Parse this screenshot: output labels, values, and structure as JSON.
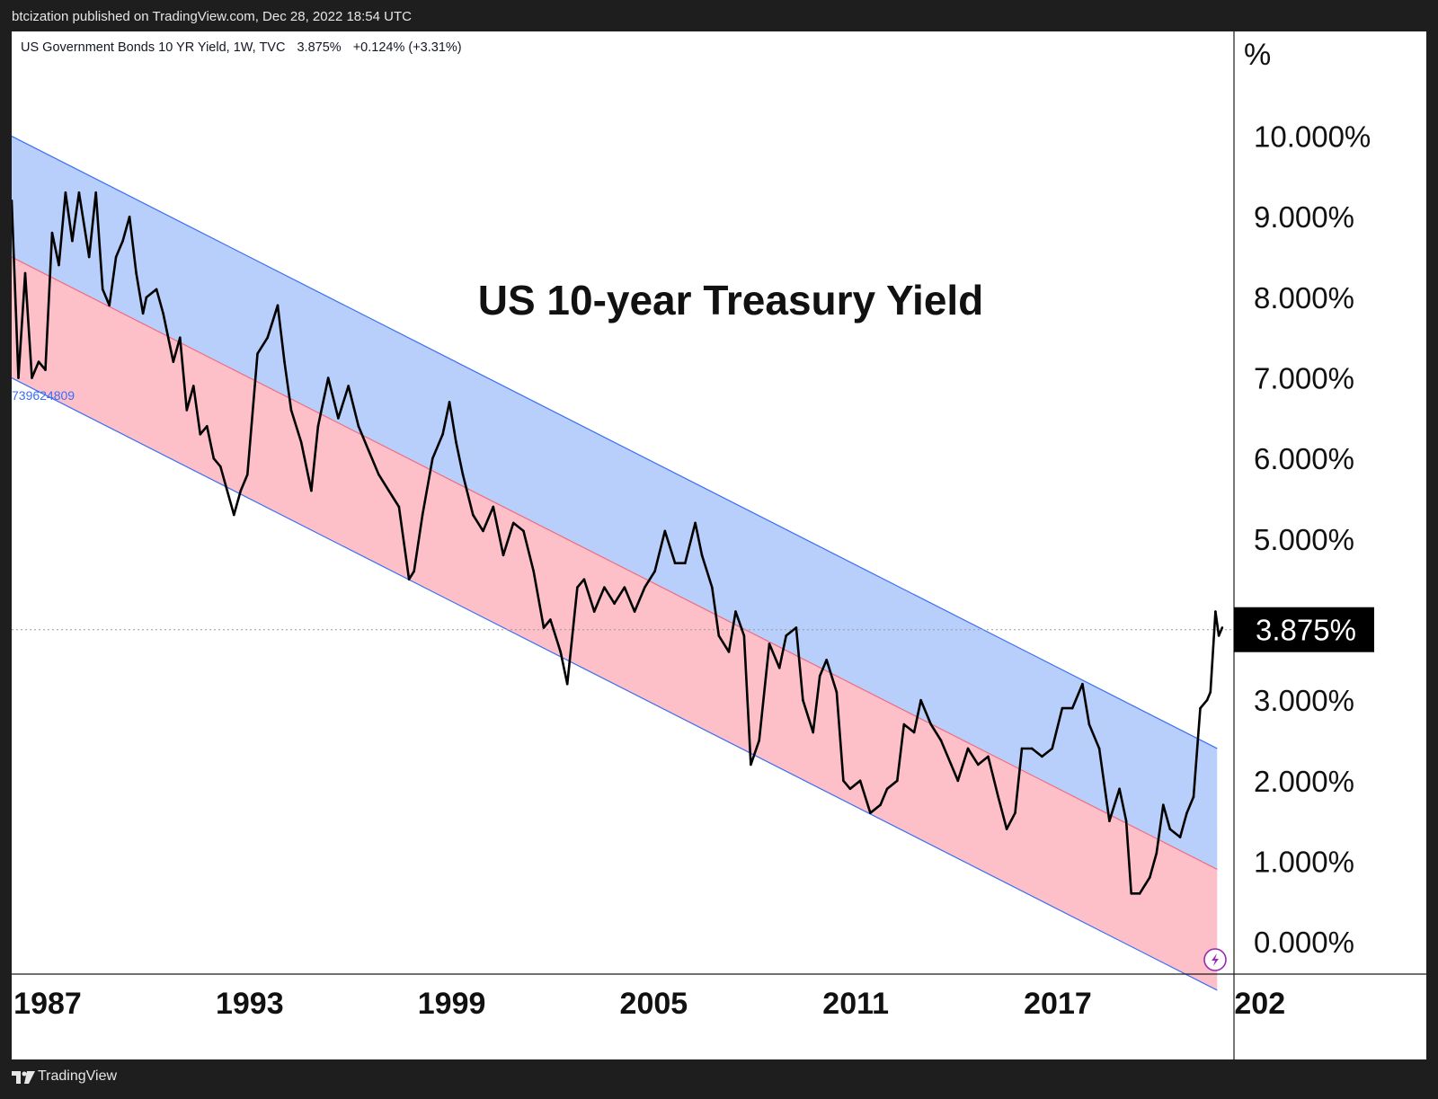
{
  "header": {
    "published": "btcization published on TradingView.com, Dec 28, 2022 18:54 UTC"
  },
  "symbol": {
    "name": "US Government Bonds 10 YR Yield, 1W, TVC",
    "price": "3.875%",
    "change": "+0.124% (+3.31%)"
  },
  "price_label": "3.875%",
  "channel_label": "739624809",
  "axis_unit": "%",
  "footer": {
    "brand": "TradingView"
  },
  "colors": {
    "upper_band": "#b8cffb",
    "lower_band": "#fdc0c8",
    "channel_line": "#3b6ef5",
    "mid_line": "#f26b7f",
    "price_line": "#000000",
    "price_badge": "#000000"
  },
  "chart_data": {
    "type": "line",
    "title": "US 10-year Treasury Yield",
    "xlabel": "",
    "ylabel": "%",
    "ylim": [
      -0.4,
      11.3
    ],
    "xlim": [
      1987.0,
      2023.3
    ],
    "y_ticks": [
      "0.000%",
      "1.000%",
      "2.000%",
      "3.000%",
      "5.000%",
      "6.000%",
      "7.000%",
      "8.000%",
      "9.000%",
      "10.000%"
    ],
    "y_tick_values": [
      0,
      1,
      2,
      3,
      5,
      6,
      7,
      8,
      9,
      10
    ],
    "x_ticks": [
      "1987",
      "1993",
      "1999",
      "2005",
      "2011",
      "2017",
      "202"
    ],
    "x_tick_values": [
      1987.0,
      1993.0,
      1999.0,
      2005.0,
      2011.0,
      2017.0,
      2023.0
    ],
    "last_value": 3.875,
    "channel": {
      "start_year": 1987.0,
      "end_year": 2022.8,
      "upper": [
        10.0,
        2.4
      ],
      "middle": [
        8.5,
        0.9
      ],
      "lower": [
        7.0,
        -0.6
      ]
    },
    "series": [
      {
        "x": [
          1987.0,
          1987.2,
          1987.4,
          1987.6,
          1987.8,
          1988.0,
          1988.2,
          1988.4,
          1988.6,
          1988.8,
          1989.0,
          1989.3,
          1989.5,
          1989.7,
          1989.9,
          1990.1,
          1990.3,
          1990.5,
          1990.7,
          1990.9,
          1991.0,
          1991.3,
          1991.5,
          1991.8,
          1992.0,
          1992.2,
          1992.4,
          1992.6,
          1992.8,
          1993.0,
          1993.2,
          1993.4,
          1993.6,
          1993.8,
          1994.0,
          1994.3,
          1994.6,
          1994.9,
          1995.1,
          1995.3,
          1995.6,
          1995.9,
          1996.1,
          1996.4,
          1996.7,
          1997.0,
          1997.3,
          1997.6,
          1997.9,
          1998.2,
          1998.5,
          1998.8,
          1998.95,
          1999.2,
          1999.5,
          1999.8,
          2000.0,
          2000.2,
          2000.4,
          2000.7,
          2001.0,
          2001.3,
          2001.6,
          2001.9,
          2002.2,
          2002.5,
          2002.8,
          2003.0,
          2003.3,
          2003.5,
          2003.8,
          2004.0,
          2004.3,
          2004.6,
          2004.9,
          2005.2,
          2005.5,
          2005.8,
          2006.1,
          2006.4,
          2006.7,
          2007.0,
          2007.3,
          2007.5,
          2007.8,
          2008.0,
          2008.3,
          2008.5,
          2008.75,
          2008.95,
          2009.2,
          2009.5,
          2009.8,
          2010.0,
          2010.3,
          2010.5,
          2010.8,
          2011.0,
          2011.2,
          2011.5,
          2011.7,
          2011.9,
          2012.2,
          2012.5,
          2012.8,
          2013.0,
          2013.3,
          2013.5,
          2013.8,
          2014.0,
          2014.3,
          2014.6,
          2014.9,
          2015.1,
          2015.4,
          2015.7,
          2016.0,
          2016.3,
          2016.55,
          2016.8,
          2017.0,
          2017.3,
          2017.6,
          2017.9,
          2018.2,
          2018.5,
          2018.8,
          2019.0,
          2019.3,
          2019.6,
          2019.9,
          2020.1,
          2020.25,
          2020.5,
          2020.8,
          2021.0,
          2021.2,
          2021.4,
          2021.7,
          2021.9,
          2022.1,
          2022.3,
          2022.5,
          2022.6,
          2022.75,
          2022.85,
          2022.95
        ],
        "values": [
          9.2,
          7.0,
          8.3,
          7.0,
          7.2,
          7.1,
          8.8,
          8.4,
          9.3,
          8.7,
          9.3,
          8.5,
          9.3,
          8.1,
          7.9,
          8.5,
          8.7,
          9.0,
          8.3,
          7.8,
          8.0,
          8.1,
          7.8,
          7.2,
          7.5,
          6.6,
          6.9,
          6.3,
          6.4,
          6.0,
          5.9,
          5.6,
          5.3,
          5.6,
          5.8,
          7.3,
          7.5,
          7.9,
          7.2,
          6.6,
          6.2,
          5.6,
          6.4,
          7.0,
          6.5,
          6.9,
          6.4,
          6.1,
          5.8,
          5.6,
          5.4,
          4.5,
          4.6,
          5.3,
          6.0,
          6.3,
          6.7,
          6.2,
          5.8,
          5.3,
          5.1,
          5.4,
          4.8,
          5.2,
          5.1,
          4.6,
          3.9,
          4.0,
          3.6,
          3.2,
          4.4,
          4.5,
          4.1,
          4.4,
          4.2,
          4.4,
          4.1,
          4.4,
          4.6,
          5.1,
          4.7,
          4.7,
          5.2,
          4.8,
          4.4,
          3.8,
          3.6,
          4.1,
          3.8,
          2.2,
          2.5,
          3.7,
          3.4,
          3.8,
          3.9,
          3.0,
          2.6,
          3.3,
          3.5,
          3.1,
          2.0,
          1.9,
          2.0,
          1.6,
          1.7,
          1.9,
          2.0,
          2.7,
          2.6,
          3.0,
          2.7,
          2.5,
          2.2,
          2.0,
          2.4,
          2.2,
          2.3,
          1.8,
          1.4,
          1.6,
          2.4,
          2.4,
          2.3,
          2.4,
          2.9,
          2.9,
          3.2,
          2.7,
          2.4,
          1.5,
          1.9,
          1.5,
          0.6,
          0.6,
          0.8,
          1.1,
          1.7,
          1.4,
          1.3,
          1.6,
          1.8,
          2.9,
          3.0,
          3.1,
          4.1,
          3.8,
          3.9
        ]
      }
    ]
  }
}
